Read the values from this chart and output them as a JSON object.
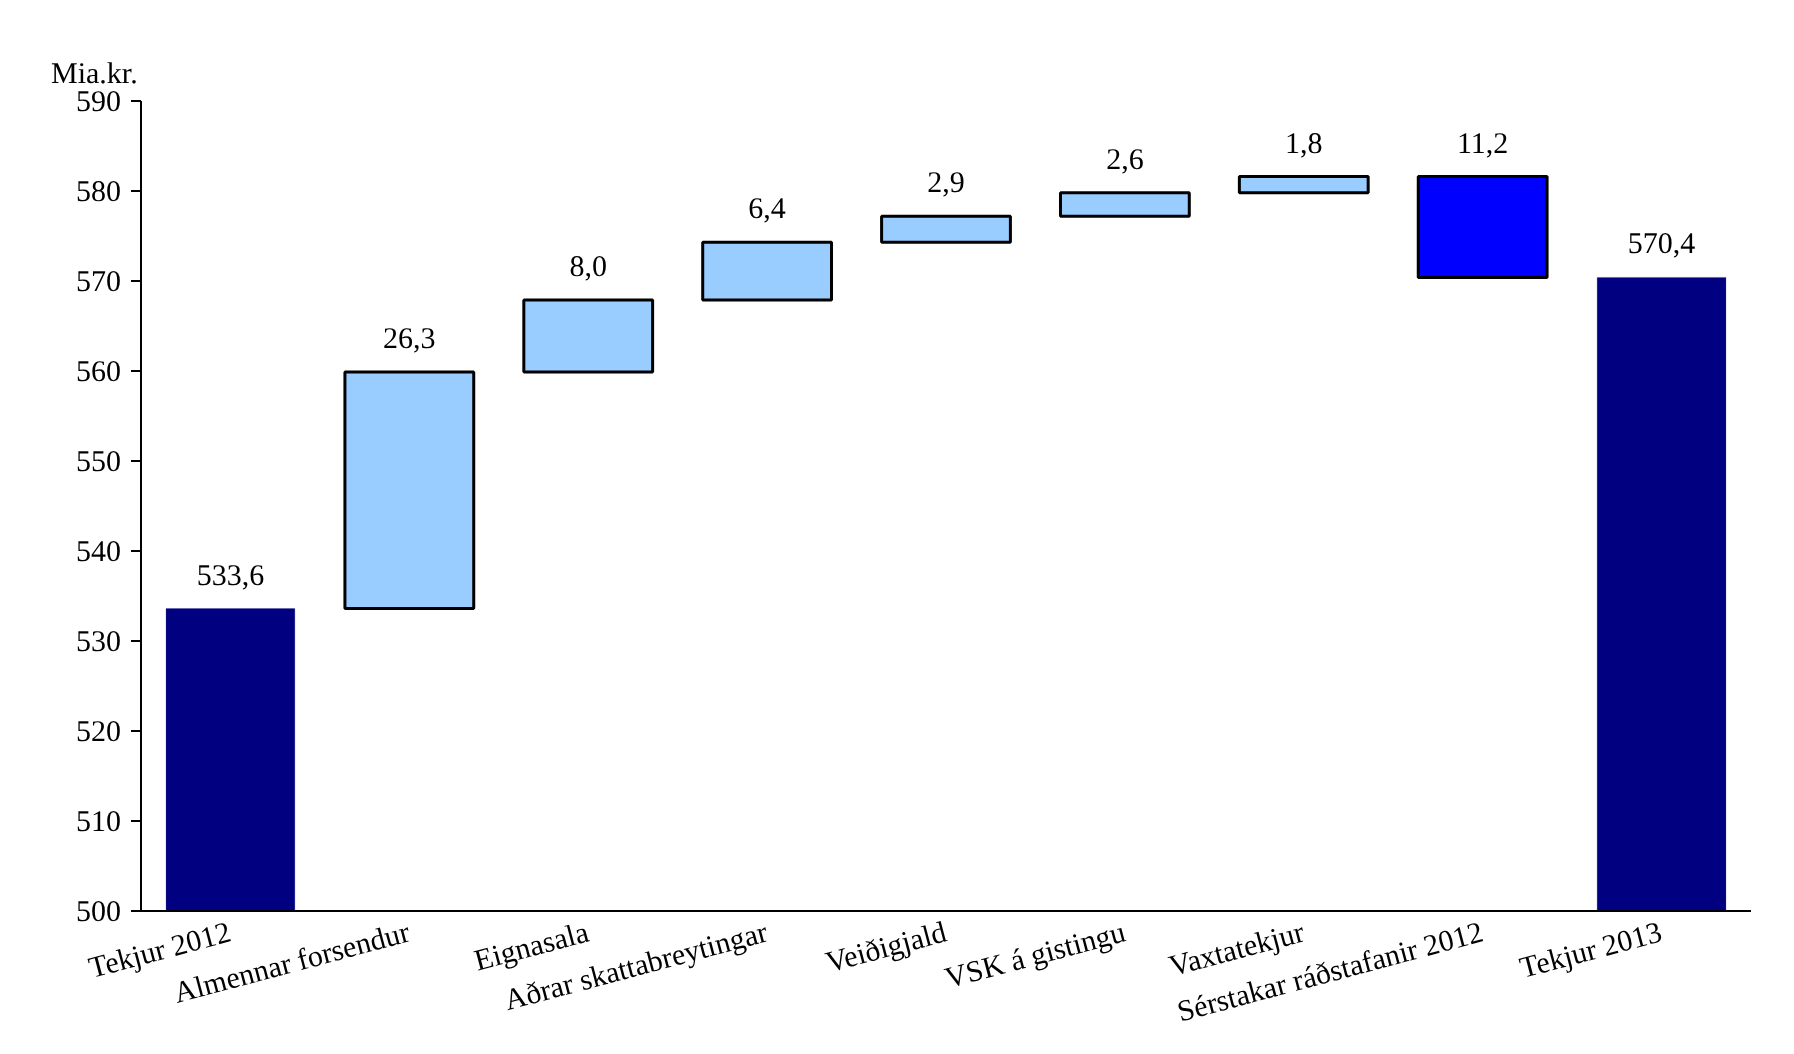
{
  "chart_data": {
    "type": "bar",
    "ylabel": "Mia.kr.",
    "categories": [
      "Tekjur 2012",
      "Almennar forsendur",
      "Eignasala",
      "Aðrar skattabreytingar",
      "Veiðigjald",
      "VSK á gistingu",
      "Vaxtatekjur",
      "Sérstakar ráðstafanir 2012",
      "Tekjur 2013"
    ],
    "values": [
      533.6,
      26.3,
      8.0,
      6.4,
      2.9,
      2.6,
      1.8,
      -11.2,
      570.4
    ],
    "base": [
      null,
      533.6,
      559.9,
      567.9,
      574.3,
      577.2,
      579.8,
      581.6,
      null
    ],
    "colors": [
      "#000080",
      "#99ccff",
      "#99ccff",
      "#99ccff",
      "#99ccff",
      "#99ccff",
      "#99ccff",
      "#0000ff",
      "#000080"
    ],
    "value_labels": [
      "533,6",
      "26,3",
      "8,0",
      "6,4",
      "2,9",
      "2,6",
      "1,8",
      "11,2",
      "570,4"
    ],
    "ylim": [
      500,
      590
    ],
    "yticks": [
      500,
      510,
      520,
      530,
      540,
      550,
      560,
      570,
      580,
      590
    ],
    "grid": false
  }
}
